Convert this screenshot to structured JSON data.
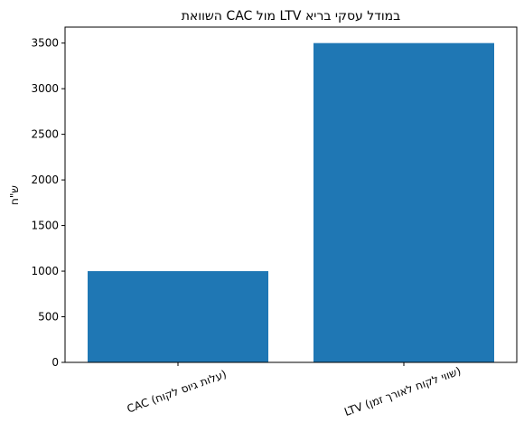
{
  "chart_data": {
    "type": "bar",
    "title": "השוואת CAC מול LTV במודל עסקי בריא",
    "ylabel": "ש\"ח",
    "categories": [
      "CAC (עלות גיוס לקוח)",
      "LTV (שווי לקוח לאורך זמן)"
    ],
    "values": [
      1000,
      3500
    ],
    "color": "#1f77b4",
    "ylim": [
      0,
      3675
    ],
    "yticks": [
      0,
      500,
      1000,
      1500,
      2000,
      2500,
      3000,
      3500
    ],
    "grid": false
  }
}
